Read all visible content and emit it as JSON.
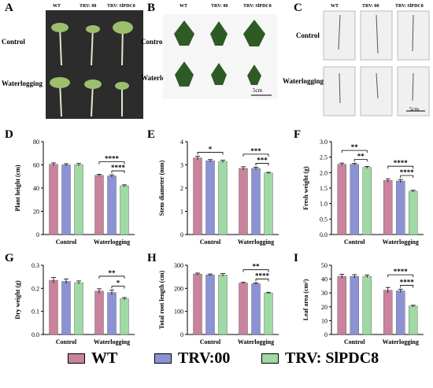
{
  "panel_labels": {
    "A": "A",
    "B": "B",
    "C": "C",
    "D": "D",
    "E": "E",
    "F": "F",
    "G": "G",
    "H": "H",
    "I": "I"
  },
  "photo_columns": {
    "wt": "WT",
    "trv00": "TRV: 00",
    "trvslpdc8": "TRV: SlPDC8"
  },
  "photo_rows": {
    "control": "Control",
    "waterlogging": "Waterlogging"
  },
  "scale_bars": {
    "b": "5cm",
    "c": "5cm"
  },
  "legend": [
    {
      "label": "WT",
      "color": "#c9839d"
    },
    {
      "label": "TRV:00",
      "color": "#8c93d4"
    },
    {
      "label": "TRV: SlPDC8",
      "color": "#9fd9a3"
    }
  ],
  "colors": {
    "wt": "#c9839d",
    "trv00": "#8c93d4",
    "trvslpdc8": "#9fd9a3"
  },
  "chart_data": [
    {
      "id": "D",
      "type": "bar",
      "ylabel": "Plant height (cm)",
      "ylim": [
        0,
        80
      ],
      "yticks": [
        "0",
        "20",
        "40",
        "60",
        "80"
      ],
      "categories": [
        "Control",
        "Waterlogging"
      ],
      "series": [
        {
          "name": "WT",
          "values": [
            60.5,
            51
          ]
        },
        {
          "name": "TRV:00",
          "values": [
            60,
            50.5
          ]
        },
        {
          "name": "TRV: SlPDC8",
          "values": [
            60.2,
            42
          ]
        }
      ],
      "errors": [
        [
          1.2,
          0.8
        ],
        [
          1,
          1
        ],
        [
          1,
          0.8
        ]
      ],
      "sig": [
        {
          "group": 1,
          "from": 0,
          "to": 2,
          "label": "****",
          "level": 1
        },
        {
          "group": 1,
          "from": 1,
          "to": 2,
          "label": "****",
          "level": 0
        }
      ]
    },
    {
      "id": "E",
      "type": "bar",
      "ylabel": "Stem diameter (mm)",
      "ylim": [
        0,
        4
      ],
      "yticks": [
        "0",
        "1",
        "2",
        "3",
        "4"
      ],
      "categories": [
        "Control",
        "Waterlogging"
      ],
      "series": [
        {
          "name": "WT",
          "values": [
            3.3,
            2.85
          ]
        },
        {
          "name": "TRV:00",
          "values": [
            3.18,
            2.85
          ]
        },
        {
          "name": "TRV: SlPDC8",
          "values": [
            3.15,
            2.65
          ]
        }
      ],
      "errors": [
        [
          0.07,
          0.07
        ],
        [
          0.05,
          0.05
        ],
        [
          0.05,
          0.03
        ]
      ],
      "sig": [
        {
          "group": 0,
          "from": 0,
          "to": 2,
          "label": "*",
          "level": 0
        },
        {
          "group": 1,
          "from": 0,
          "to": 2,
          "label": "***",
          "level": 1
        },
        {
          "group": 1,
          "from": 1,
          "to": 2,
          "label": "***",
          "level": 0
        }
      ]
    },
    {
      "id": "F",
      "type": "bar",
      "ylabel": "Fresh weight (g)",
      "ylim": [
        0,
        3
      ],
      "yticks": [
        "0.0",
        "0.5",
        "1.0",
        "1.5",
        "2.0",
        "2.5",
        "3.0"
      ],
      "categories": [
        "Control",
        "Waterlogging"
      ],
      "series": [
        {
          "name": "WT",
          "values": [
            2.27,
            1.75
          ]
        },
        {
          "name": "TRV:00",
          "values": [
            2.27,
            1.73
          ]
        },
        {
          "name": "TRV: SlPDC8",
          "values": [
            2.17,
            1.4
          ]
        }
      ],
      "errors": [
        [
          0.04,
          0.05
        ],
        [
          0.03,
          0.05
        ],
        [
          0.03,
          0.03
        ]
      ],
      "sig": [
        {
          "group": 0,
          "from": 0,
          "to": 2,
          "label": "**",
          "level": 1
        },
        {
          "group": 0,
          "from": 1,
          "to": 2,
          "label": "**",
          "level": 0
        },
        {
          "group": 1,
          "from": 0,
          "to": 2,
          "label": "****",
          "level": 1
        },
        {
          "group": 1,
          "from": 1,
          "to": 2,
          "label": "****",
          "level": 0
        }
      ]
    },
    {
      "id": "G",
      "type": "bar",
      "ylabel": "Dry weight (g)",
      "ylim": [
        0,
        0.3
      ],
      "yticks": [
        "0.0",
        "0.1",
        "0.2",
        "0.3"
      ],
      "categories": [
        "Control",
        "Waterlogging"
      ],
      "series": [
        {
          "name": "WT",
          "values": [
            0.235,
            0.188
          ]
        },
        {
          "name": "TRV:00",
          "values": [
            0.23,
            0.182
          ]
        },
        {
          "name": "TRV: SlPDC8",
          "values": [
            0.225,
            0.155
          ]
        }
      ],
      "errors": [
        [
          0.012,
          0.01
        ],
        [
          0.01,
          0.01
        ],
        [
          0.007,
          0.005
        ]
      ],
      "sig": [
        {
          "group": 1,
          "from": 0,
          "to": 2,
          "label": "**",
          "level": 1
        },
        {
          "group": 1,
          "from": 1,
          "to": 2,
          "label": "*",
          "level": 0
        }
      ]
    },
    {
      "id": "H",
      "type": "bar",
      "ylabel": "Total root length (cm)",
      "ylim": [
        0,
        300
      ],
      "yticks": [
        "0",
        "100",
        "200",
        "300"
      ],
      "categories": [
        "Control",
        "Waterlogging"
      ],
      "series": [
        {
          "name": "WT",
          "values": [
            262,
            223
          ]
        },
        {
          "name": "TRV:00",
          "values": [
            258,
            220
          ]
        },
        {
          "name": "TRV: SlPDC8",
          "values": [
            258,
            180
          ]
        }
      ],
      "errors": [
        [
          4,
          3
        ],
        [
          4,
          3
        ],
        [
          6,
          3
        ]
      ],
      "sig": [
        {
          "group": 1,
          "from": 0,
          "to": 2,
          "label": "**",
          "level": 1
        },
        {
          "group": 1,
          "from": 1,
          "to": 2,
          "label": "****",
          "level": 0
        }
      ]
    },
    {
      "id": "I",
      "type": "bar",
      "ylabel": "Leaf area (cm²)",
      "ylim": [
        0,
        50
      ],
      "yticks": [
        "0",
        "10",
        "20",
        "30",
        "40",
        "50"
      ],
      "categories": [
        "Control",
        "Waterlogging"
      ],
      "series": [
        {
          "name": "WT",
          "values": [
            42,
            32
          ]
        },
        {
          "name": "TRV:00",
          "values": [
            42,
            31.5
          ]
        },
        {
          "name": "TRV: SlPDC8",
          "values": [
            42,
            20.5
          ]
        }
      ],
      "errors": [
        [
          1.5,
          2
        ],
        [
          1.2,
          1.2
        ],
        [
          1,
          0.6
        ]
      ],
      "sig": [
        {
          "group": 1,
          "from": 0,
          "to": 2,
          "label": "****",
          "level": 1
        },
        {
          "group": 1,
          "from": 1,
          "to": 2,
          "label": "****",
          "level": 0
        }
      ]
    }
  ]
}
